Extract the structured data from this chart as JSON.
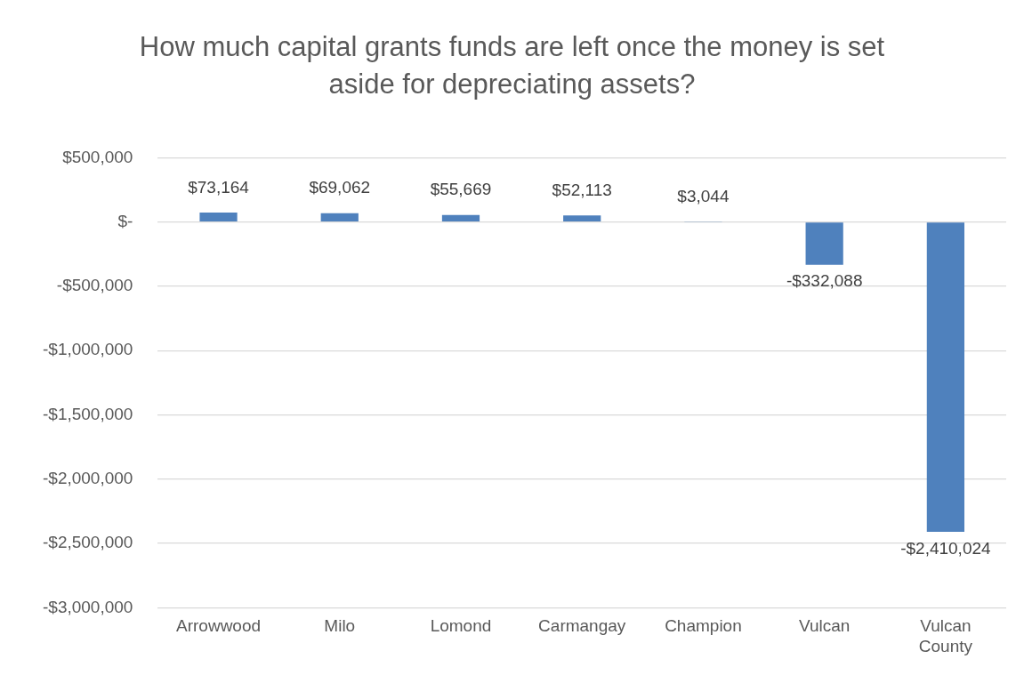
{
  "chart_data": {
    "type": "bar",
    "title": "How much capital grants funds are left once the money is set aside for depreciating assets?",
    "categories": [
      "Arrowwood",
      "Milo",
      "Lomond",
      "Carmangay",
      "Champion",
      "Vulcan",
      "Vulcan County"
    ],
    "values": [
      73164,
      69062,
      55669,
      52113,
      3044,
      -332088,
      -2410024
    ],
    "color": "#4f81bd",
    "value_labels": [
      "$73,164",
      "$69,062",
      "$55,669",
      "$52,113",
      "$3,044",
      "-$332,088",
      "-$2,410,024"
    ],
    "ylim": [
      -3000000,
      500000
    ],
    "yticks": [
      {
        "value": 500000,
        "label": "$500,000"
      },
      {
        "value": 0,
        "label": "$-"
      },
      {
        "value": -500000,
        "label": "-$500,000"
      },
      {
        "value": -1000000,
        "label": "-$1,000,000"
      },
      {
        "value": -1500000,
        "label": "-$1,500,000"
      },
      {
        "value": -2000000,
        "label": "-$2,000,000"
      },
      {
        "value": -2500000,
        "label": "-$2,500,000"
      },
      {
        "value": -3000000,
        "label": "-$3,000,000"
      }
    ],
    "grid": "y",
    "legend": false
  }
}
